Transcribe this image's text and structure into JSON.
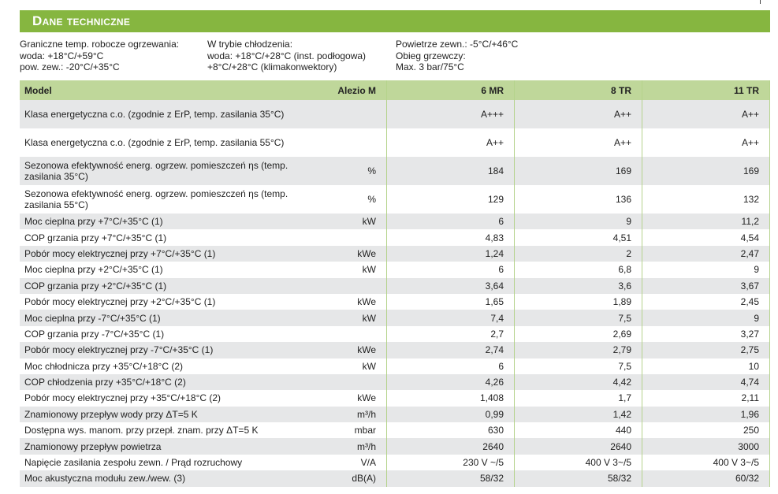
{
  "title": "Dane techniczne",
  "info": {
    "col1": [
      "Graniczne temp. robocze ogrzewania:",
      "woda: +18°C/+59°C",
      "pow. zew.: -20°C/+35°C"
    ],
    "col2": [
      "W trybie chłodzenia:",
      "woda: +18°C/+28°C (inst. podłogowa)",
      "+8°C/+28°C (klimakonwektory)"
    ],
    "col3": [
      "Powietrze zewn.: -5°C/+46°C",
      "Obieg grzewczy:",
      "Max. 3 bar/75°C"
    ]
  },
  "table": {
    "header": {
      "model": "Model",
      "series": "Alezio M",
      "cols": [
        "6 MR",
        "8 TR",
        "11 TR"
      ]
    },
    "rows": [
      {
        "label": "Klasa energetyczna c.o. (zgodnie z ErP, temp. zasilania 35°C)",
        "unit": "",
        "values": [
          "A+++",
          "A++",
          "A++"
        ],
        "two": true
      },
      {
        "label": "Klasa energetyczna c.o. (zgodnie z ErP, temp. zasilania 55°C)",
        "unit": "",
        "values": [
          "A++",
          "A++",
          "A++"
        ],
        "two": true
      },
      {
        "label": "Sezonowa efektywność energ. ogrzew. pomieszczeń ηs (temp. zasilania 35°C)",
        "unit": "%",
        "values": [
          "184",
          "169",
          "169"
        ],
        "two": true
      },
      {
        "label": "Sezonowa efektywność energ. ogrzew. pomieszczeń ηs (temp. zasilania 55°C)",
        "unit": "%",
        "values": [
          "129",
          "136",
          "132"
        ],
        "two": true
      },
      {
        "label": "Moc cieplna przy +7°C/+35°C (1)",
        "unit": "kW",
        "values": [
          "6",
          "9",
          "11,2"
        ]
      },
      {
        "label": "COP grzania przy +7°C/+35°C (1)",
        "unit": "",
        "values": [
          "4,83",
          "4,51",
          "4,54"
        ]
      },
      {
        "label": "Pobór mocy elektrycznej przy +7°C/+35°C (1)",
        "unit": "kWe",
        "values": [
          "1,24",
          "2",
          "2,47"
        ]
      },
      {
        "label": "Moc cieplna przy +2°C/+35°C (1)",
        "unit": "kW",
        "values": [
          "6",
          "6,8",
          "9"
        ]
      },
      {
        "label": "COP grzania przy +2°C/+35°C (1)",
        "unit": "",
        "values": [
          "3,64",
          "3,6",
          "3,67"
        ]
      },
      {
        "label": "Pobór mocy elektrycznej przy +2°C/+35°C (1)",
        "unit": "kWe",
        "values": [
          "1,65",
          "1,89",
          "2,45"
        ]
      },
      {
        "label": "Moc cieplna przy -7°C/+35°C (1)",
        "unit": "kW",
        "values": [
          "7,4",
          "7,5",
          "9"
        ]
      },
      {
        "label": "COP grzania przy -7°C/+35°C (1)",
        "unit": "",
        "values": [
          "2,7",
          "2,69",
          "3,27"
        ]
      },
      {
        "label": "Pobór mocy elektrycznej przy -7°C/+35°C (1)",
        "unit": "kWe",
        "values": [
          "2,74",
          "2,79",
          "2,75"
        ]
      },
      {
        "label": "Moc chłodnicza przy +35°C/+18°C (2)",
        "unit": "kW",
        "values": [
          "6",
          "7,5",
          "10"
        ]
      },
      {
        "label": "COP chłodzenia przy +35°C/+18°C (2)",
        "unit": "",
        "values": [
          "4,26",
          "4,42",
          "4,74"
        ]
      },
      {
        "label": "Pobór mocy elektrycznej przy +35°C/+18°C (2)",
        "unit": "kWe",
        "values": [
          "1,408",
          "1,7",
          "2,11"
        ]
      },
      {
        "label": "Znamionowy przepływ wody przy ΔT=5 K",
        "unit": "m³/h",
        "values": [
          "0,99",
          "1,42",
          "1,96"
        ]
      },
      {
        "label": "Dostępna wys. manom. przy przepł. znam. przy ΔT=5 K",
        "unit": "mbar",
        "values": [
          "630",
          "440",
          "250"
        ]
      },
      {
        "label": "Znamionowy przepływ powietrza",
        "unit": "m³/h",
        "values": [
          "2640",
          "2640",
          "3000"
        ]
      },
      {
        "label": "Napięcie zasilania zespołu zewn. / Prąd rozruchowy",
        "unit": "V/A",
        "values": [
          "230 V ~/5",
          "400 V 3~/5",
          "400 V 3~/5"
        ]
      },
      {
        "label": "Moc akustyczna modułu zew./wew. (3)",
        "unit": "dB(A)",
        "values": [
          "58/32",
          "58/32",
          "60/32"
        ]
      }
    ]
  }
}
